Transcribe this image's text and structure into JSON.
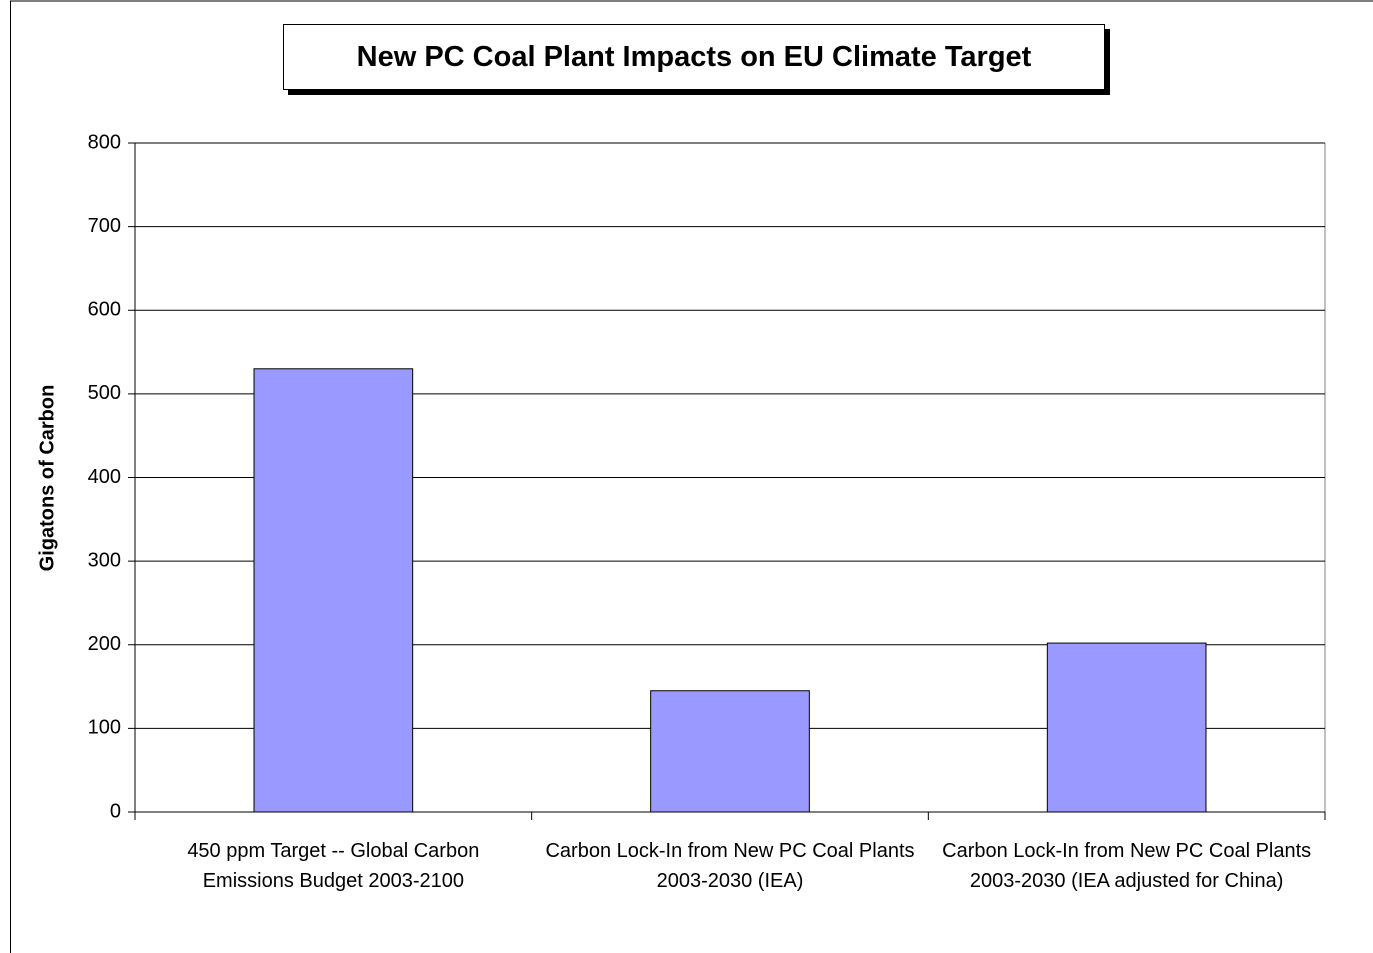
{
  "chart_data": {
    "type": "bar",
    "title": "New PC Coal Plant Impacts on EU Climate Target",
    "y_label": "Gigatons of Carbon",
    "categories": [
      "450 ppm Target -- Global Carbon Emissions Budget 2003-2100",
      "Carbon Lock-In from New PC Coal Plants 2003-2030 (IEA)",
      "Carbon Lock-In from New PC Coal Plants 2003-2030 (IEA adjusted for China)"
    ],
    "values": [
      530,
      145,
      202
    ],
    "color": "#9999ff",
    "ylim": [
      0,
      800
    ],
    "yticks": [
      0,
      100,
      200,
      300,
      400,
      500,
      600,
      700,
      800
    ],
    "grid": true
  }
}
